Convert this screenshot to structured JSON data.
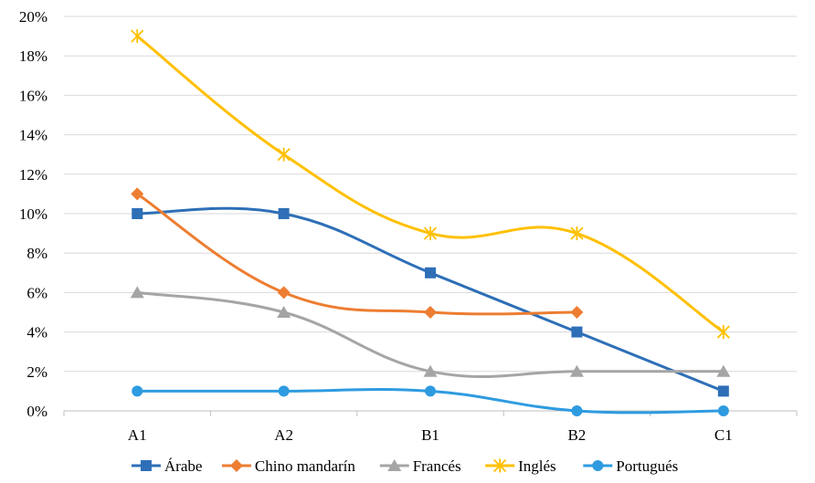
{
  "chart_data": {
    "type": "line",
    "title": "",
    "xlabel": "",
    "ylabel": "",
    "categories": [
      "A1",
      "A2",
      "B1",
      "B2",
      "C1"
    ],
    "ylim": [
      0,
      20
    ],
    "y_ticks": [
      0,
      2,
      4,
      6,
      8,
      10,
      12,
      14,
      16,
      18,
      20
    ],
    "y_tick_labels": [
      "0%",
      "2%",
      "4%",
      "6%",
      "8%",
      "10%",
      "12%",
      "14%",
      "16%",
      "18%",
      "20%"
    ],
    "grid": "horizontal",
    "legend_position": "bottom",
    "series": [
      {
        "name": "Árabe",
        "color": "#2e6fb7",
        "marker": "square",
        "values": [
          10,
          10,
          7,
          4,
          1
        ]
      },
      {
        "name": "Chino mandarín",
        "color": "#ed7d31",
        "marker": "diamond",
        "values": [
          11,
          6,
          5,
          5,
          null
        ]
      },
      {
        "name": "Francés",
        "color": "#a5a5a5",
        "marker": "triangle",
        "values": [
          6,
          5,
          2,
          2,
          2
        ]
      },
      {
        "name": "Inglés",
        "color": "#ffc000",
        "marker": "star",
        "values": [
          19,
          13,
          9,
          9,
          4
        ]
      },
      {
        "name": "Portugués",
        "color": "#2e9be0",
        "marker": "circle",
        "values": [
          1,
          1,
          1,
          0,
          0
        ]
      }
    ]
  }
}
